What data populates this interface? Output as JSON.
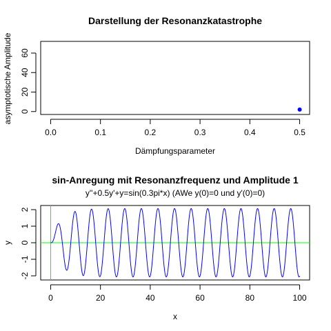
{
  "chart_data": [
    {
      "type": "scatter",
      "title": "Darstellung der Resonanzkatastrophe",
      "xlabel": "Dämpfungsparameter",
      "ylabel": "asymptotische Amplitude",
      "xlim": [
        -0.02,
        0.52
      ],
      "ylim": [
        -3,
        72
      ],
      "xticks": [
        0.0,
        0.1,
        0.2,
        0.3,
        0.4,
        0.5
      ],
      "xtick_labels": [
        "0.0",
        "0.1",
        "0.2",
        "0.3",
        "0.4",
        "0.5"
      ],
      "yticks": [
        0,
        20,
        40,
        60
      ],
      "ytick_labels": [
        "0",
        "20",
        "40",
        "60"
      ],
      "grid": false,
      "points": [
        {
          "x": 0.5,
          "y": 2
        }
      ],
      "point_color": "#0000ff"
    },
    {
      "type": "line",
      "title": "sin-Anregung mit Resonanzfrequenz und Amplitude 1",
      "subtitle": "y''+0.5y'+y=sin(0.3pi*x) (AWe y(0)=0 und y'(0)=0)",
      "xlabel": "x",
      "ylabel": "y",
      "xlim": [
        -4,
        104
      ],
      "ylim": [
        -2.25,
        2.25
      ],
      "xticks": [
        0,
        20,
        40,
        60,
        80,
        100
      ],
      "xtick_labels": [
        "0",
        "20",
        "40",
        "60",
        "80",
        "100"
      ],
      "yticks": [
        -2,
        -1,
        0,
        1,
        2
      ],
      "ytick_labels": [
        "-2",
        "-1",
        "0",
        "1",
        "2"
      ],
      "grid": false,
      "equation": "y''+0.5y'+y=sin(0.3pi*x)",
      "initial_conditions": {
        "y0": 0,
        "dy0": 0
      },
      "x_range": [
        0,
        100
      ],
      "line_color": "#0000ff",
      "reference_lines": {
        "horizontal_y": 0,
        "vertical_x": 0,
        "color": "#00ff00"
      }
    }
  ]
}
